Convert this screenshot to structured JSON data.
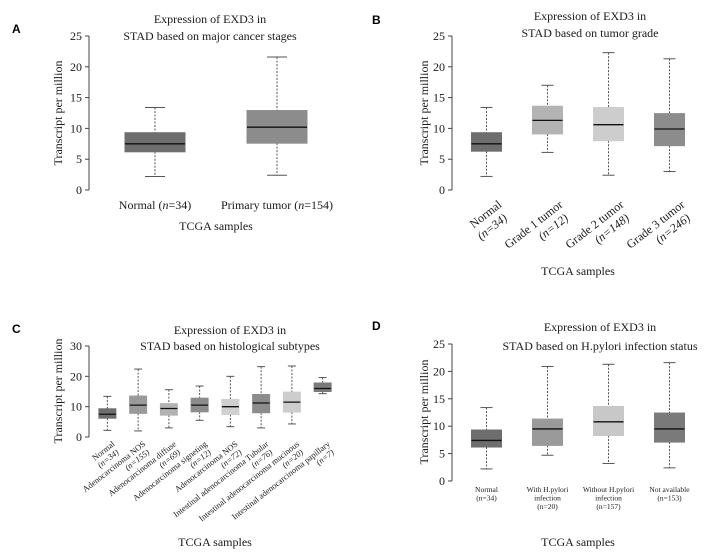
{
  "chart_data": [
    {
      "panel": "A",
      "type": "boxplot",
      "title": [
        "Expression of EXD3 in",
        "STAD based on major cancer stages"
      ],
      "ylabel": "Transcript per million",
      "xlabel": "TCGA samples",
      "ylim": [
        0,
        25
      ],
      "yticks": [
        0,
        5,
        10,
        15,
        20,
        25
      ],
      "categories": [
        {
          "label": [
            "Normal (",
            "n",
            "=34)"
          ],
          "min": 2.2,
          "q1": 6.2,
          "median": 7.5,
          "q3": 9.3,
          "max": 13.4,
          "color": "#6e6e6e"
        },
        {
          "label": [
            "Primary tumor (",
            "n",
            "=154)"
          ],
          "min": 2.4,
          "q1": 7.6,
          "median": 10.2,
          "q3": 12.9,
          "max": 21.6,
          "color": "#8c8c8c"
        }
      ]
    },
    {
      "panel": "B",
      "type": "boxplot",
      "title": [
        "Expression of EXD3 in",
        "STAD based on tumor grade"
      ],
      "ylabel": "Transcript per million",
      "xlabel": "TCGA samples",
      "ylim": [
        0,
        25
      ],
      "yticks": [
        0,
        5,
        10,
        15,
        20,
        25
      ],
      "categories": [
        {
          "label": [
            "Normal",
            "(n=34)"
          ],
          "min": 2.2,
          "q1": 6.3,
          "median": 7.5,
          "q3": 9.3,
          "max": 13.4,
          "color": "#6e6e6e"
        },
        {
          "label": [
            "Grade 1 tumor",
            "(n=12)"
          ],
          "min": 6.1,
          "q1": 9.1,
          "median": 11.3,
          "q3": 13.6,
          "max": 17.0,
          "color": "#b3b3b3"
        },
        {
          "label": [
            "Grade 2 tumor",
            "(n=148)"
          ],
          "min": 2.4,
          "q1": 8.0,
          "median": 10.6,
          "q3": 13.4,
          "max": 22.3,
          "color": "#cdcdcd"
        },
        {
          "label": [
            "Grade 3 tumor",
            "(n=246)"
          ],
          "min": 3.0,
          "q1": 7.2,
          "median": 9.9,
          "q3": 12.4,
          "max": 21.3,
          "color": "#8c8c8c"
        }
      ]
    },
    {
      "panel": "C",
      "type": "boxplot",
      "title": [
        "Expression of EXD3 in",
        "STAD based on histological subtypes"
      ],
      "ylabel": "Transcript per million",
      "xlabel": "TCGA samples",
      "ylim": [
        0,
        30
      ],
      "yticks": [
        0,
        10,
        20,
        30
      ],
      "categories": [
        {
          "label": [
            "Normal",
            "(n=34)"
          ],
          "min": 2.2,
          "q1": 6.2,
          "median": 7.5,
          "q3": 9.3,
          "max": 13.4,
          "color": "#6e6e6e"
        },
        {
          "label": [
            "Adenocarcinoma NOS",
            "(n=155)"
          ],
          "min": 2.0,
          "q1": 7.8,
          "median": 10.5,
          "q3": 13.5,
          "max": 22.4,
          "color": "#9a9a9a"
        },
        {
          "label": [
            "Adenocarcinoma diffuse",
            "(n=69)"
          ],
          "min": 3.0,
          "q1": 7.2,
          "median": 9.4,
          "q3": 11.0,
          "max": 15.6,
          "color": "#b3b3b3"
        },
        {
          "label": [
            "Adenocarcinoma signeting",
            "(n=12)"
          ],
          "min": 5.5,
          "q1": 8.3,
          "median": 10.5,
          "q3": 12.8,
          "max": 16.8,
          "color": "#8c8c8c"
        },
        {
          "label": [
            "Adenocarcinoma NOS",
            "(n=72)"
          ],
          "min": 3.4,
          "q1": 7.4,
          "median": 10.0,
          "q3": 12.4,
          "max": 20.0,
          "color": "#d0d0d0"
        },
        {
          "label": [
            "Intestinal adenocarcinoma Tubular",
            "(n=76)"
          ],
          "min": 3.0,
          "q1": 8.0,
          "median": 11.2,
          "q3": 14.0,
          "max": 23.2,
          "color": "#8c8c8c"
        },
        {
          "label": [
            "Intestinal adenocarcinoma mucinous",
            "(n=20)"
          ],
          "min": 4.3,
          "q1": 8.2,
          "median": 11.5,
          "q3": 14.8,
          "max": 23.4,
          "color": "#cdcdcd"
        },
        {
          "label": [
            "Intestinal adenocarcinoma papillary",
            "(n=7)"
          ],
          "min": 14.3,
          "q1": 15.0,
          "median": 16.0,
          "q3": 17.8,
          "max": 19.6,
          "color": "#7a7a7a"
        }
      ]
    },
    {
      "panel": "D",
      "type": "boxplot",
      "title": [
        "Expression of EXD3 in",
        "STAD based on H.pylori infection status"
      ],
      "ylabel": "Transcript per million",
      "xlabel": "TCGA samples",
      "ylim": [
        0,
        25
      ],
      "yticks": [
        0,
        5,
        10,
        15,
        20,
        25
      ],
      "categories": [
        {
          "label": [
            "Normal",
            "(n=34)"
          ],
          "min": 2.2,
          "q1": 6.2,
          "median": 7.4,
          "q3": 9.3,
          "max": 13.4,
          "color": "#6e6e6e"
        },
        {
          "label": [
            "With H.pylori",
            "infection",
            "(n=20)"
          ],
          "min": 4.7,
          "q1": 6.5,
          "median": 9.5,
          "q3": 11.3,
          "max": 20.9,
          "color": "#9a9a9a"
        },
        {
          "label": [
            "Without H.pylori",
            "infection",
            "(n=157)"
          ],
          "min": 3.2,
          "q1": 8.3,
          "median": 10.8,
          "q3": 13.6,
          "max": 21.3,
          "color": "#c8c8c8"
        },
        {
          "label": [
            "Not available",
            "(n=153)"
          ],
          "min": 2.4,
          "q1": 7.1,
          "median": 9.5,
          "q3": 12.4,
          "max": 21.6,
          "color": "#7a7a7a"
        }
      ]
    }
  ]
}
